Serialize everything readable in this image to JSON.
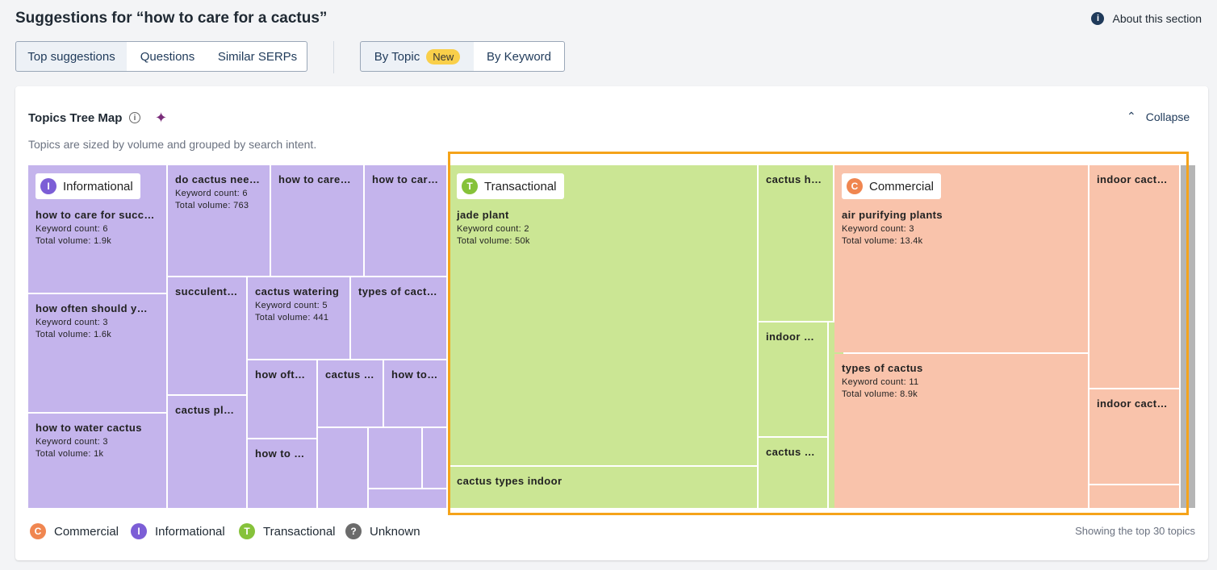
{
  "header": {
    "title": "Suggestions for “how to care for a cactus”",
    "about": "About this section",
    "info_icon": "i"
  },
  "tabs": {
    "group1": [
      "Top suggestions",
      "Questions",
      "Similar SERPs"
    ],
    "group2": [
      {
        "label": "By Topic",
        "badge": "New"
      },
      {
        "label": "By Keyword"
      }
    ]
  },
  "card": {
    "title": "Topics Tree Map",
    "info_icon": "i",
    "sparkle": "✦",
    "collapse": "Collapse",
    "collapse_icon": "⌃",
    "subtitle": "Topics are sized by volume and grouped by search intent.",
    "tiles": [
      {
        "badge": {
          "icon": "I",
          "label": "Informational"
        },
        "name": "how to care for succ…",
        "keyword_count": "Keyword count: 6",
        "total_volume": "Total volume: 1.9k"
      },
      {
        "name": "how often should y…",
        "keyword_count": "Keyword count: 3",
        "total_volume": "Total volume: 1.6k"
      },
      {
        "name": "how to water cactus",
        "keyword_count": "Keyword count: 3",
        "total_volume": "Total volume: 1k"
      },
      {
        "name": "do cactus nee…",
        "keyword_count": "Keyword count: 6",
        "total_volume": "Total volume: 763"
      },
      {
        "name": "how to care…"
      },
      {
        "name": "how to car…"
      },
      {
        "name": "succulent…"
      },
      {
        "name": "cactus watering",
        "keyword_count": "Keyword count: 5",
        "total_volume": "Total volume: 441"
      },
      {
        "name": "types of cact…"
      },
      {
        "name": "cactus pl…"
      },
      {
        "name": "how oft…"
      },
      {
        "name": "cactus …"
      },
      {
        "name": "how to…"
      },
      {
        "name": "how to …"
      },
      {},
      {},
      {},
      {},
      {
        "badge": {
          "icon": "T",
          "label": "Transactional"
        },
        "name": "jade plant",
        "keyword_count": "Keyword count: 2",
        "total_volume": "Total volume: 50k"
      },
      {
        "name": "cactus types indoor"
      },
      {
        "name": "cactus h…"
      },
      {
        "name": "indoor …"
      },
      {
        "name": "cactus …"
      },
      {},
      {
        "badge": {
          "icon": "C",
          "label": "Commercial"
        },
        "name": "air purifying plants",
        "keyword_count": "Keyword count: 3",
        "total_volume": "Total volume: 13.4k"
      },
      {
        "name": "types of cactus",
        "keyword_count": "Keyword count: 11",
        "total_volume": "Total volume: 8.9k"
      },
      {
        "name": "indoor cact…"
      },
      {
        "name": "indoor cact…"
      },
      {},
      {}
    ],
    "legend": [
      {
        "icon": "C",
        "label": "Commercial"
      },
      {
        "icon": "I",
        "label": "Informational"
      },
      {
        "icon": "T",
        "label": "Transactional"
      },
      {
        "icon": "?",
        "label": "Unknown"
      }
    ],
    "footnote": "Showing the top 30 topics"
  }
}
